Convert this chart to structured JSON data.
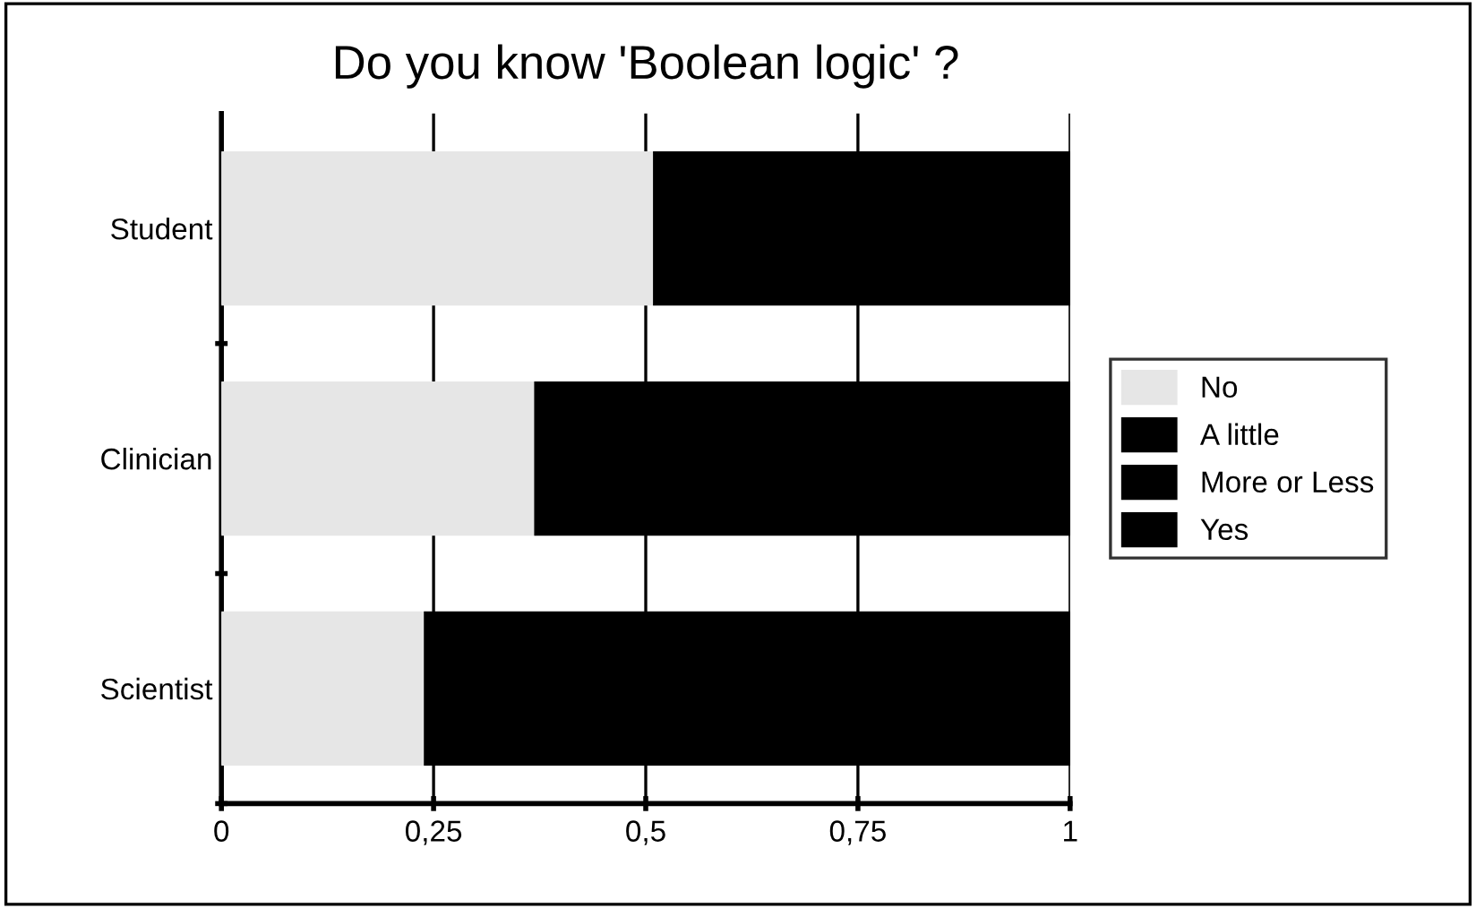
{
  "chart_data": {
    "type": "bar",
    "orientation": "horizontal",
    "stacked": true,
    "title": "Do you know 'Boolean logic' ?",
    "categories": [
      "Student",
      "Clinician",
      "Scientist"
    ],
    "series": [
      {
        "name": "No",
        "color": "#e6e6e6",
        "values": [
          0.51,
          0.37,
          0.24
        ]
      },
      {
        "name": "A little",
        "color": "#000000",
        "values": [
          0.49,
          0.63,
          0.76
        ]
      },
      {
        "name": "More or Less",
        "color": "#000000",
        "values": [
          null,
          null,
          null
        ]
      },
      {
        "name": "Yes",
        "color": "#000000",
        "values": [
          null,
          null,
          null
        ]
      }
    ],
    "xlim": [
      0,
      1
    ],
    "xticks": [
      0,
      {
        "value": 0.25,
        "label": "0,25"
      },
      {
        "value": 0.5,
        "label": "0,5"
      },
      {
        "value": 0.75,
        "label": "0,75"
      },
      1
    ],
    "grid": "x",
    "legend": "right"
  }
}
